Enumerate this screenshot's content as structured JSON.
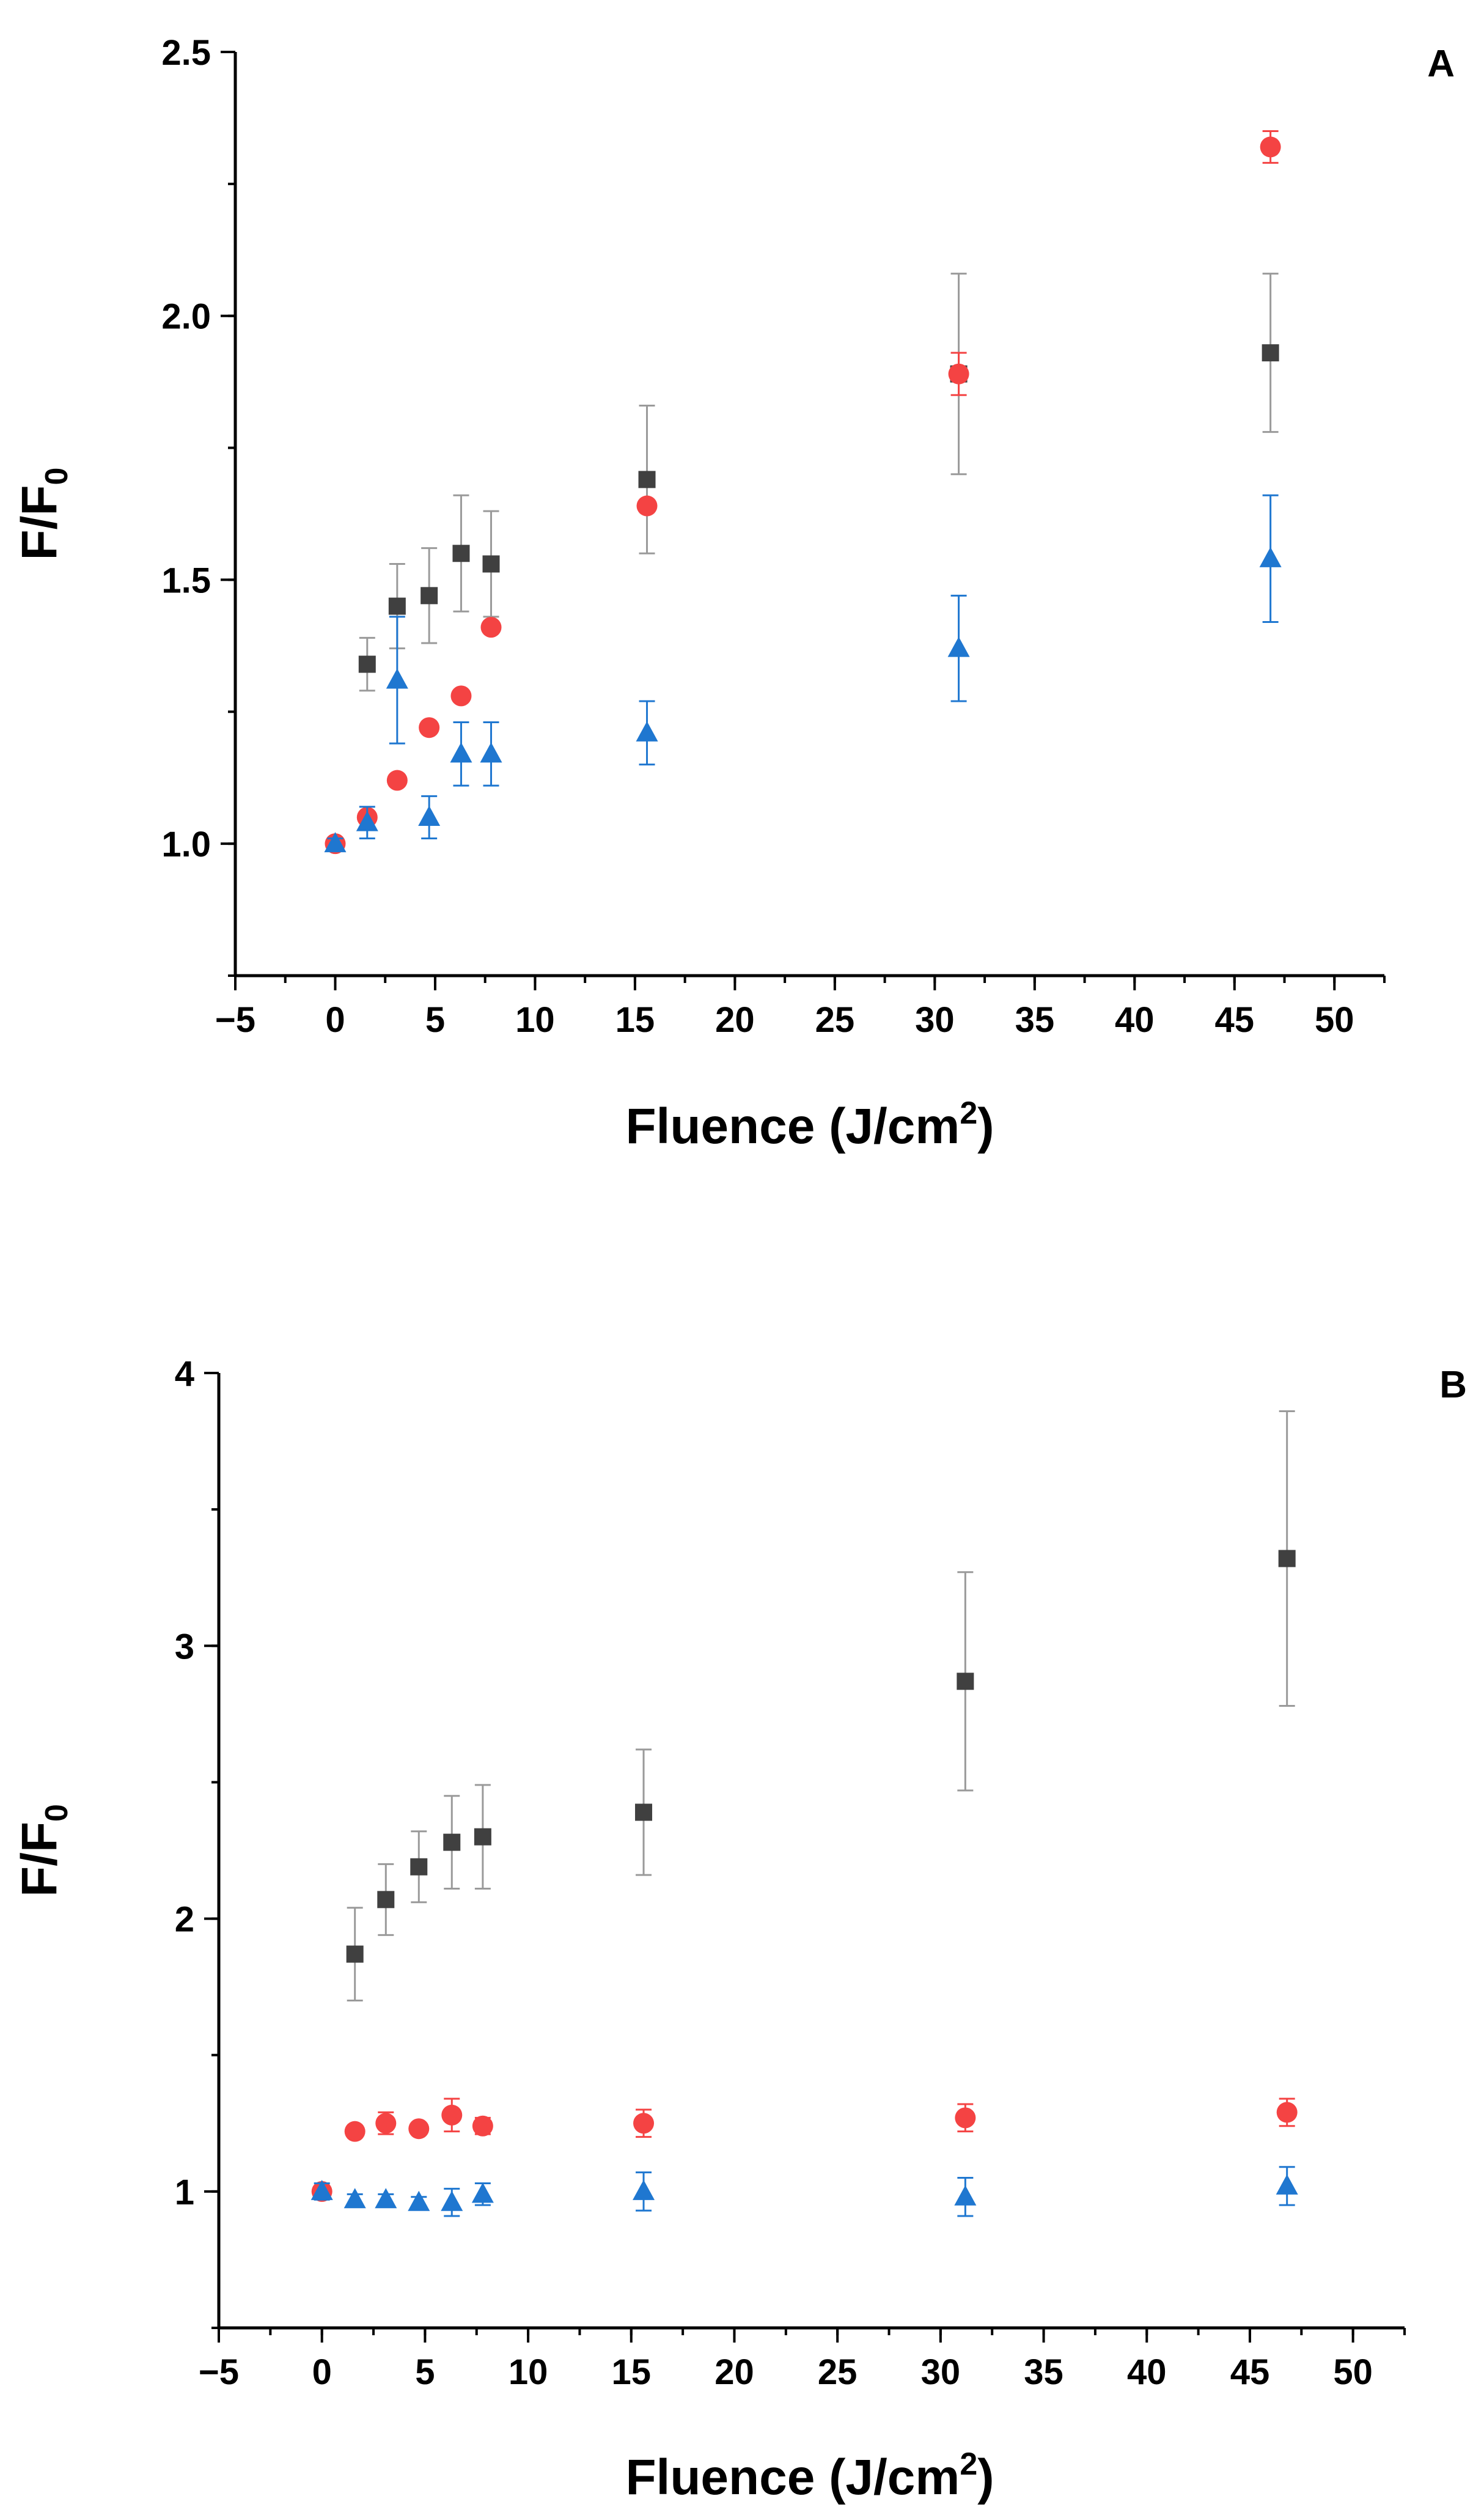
{
  "chart_data": [
    {
      "type": "scatter",
      "panel_label": "A",
      "xlabel": {
        "base": "Fluence (J/cm",
        "sup": "2",
        "tail": ")"
      },
      "ylabel": {
        "base": "F/F",
        "sub": "0"
      },
      "xlim": [
        -5,
        52.5
      ],
      "ylim": [
        0.75,
        2.5
      ],
      "xticks": [
        -5,
        0,
        5,
        10,
        15,
        20,
        25,
        30,
        35,
        40,
        45,
        50
      ],
      "xtick_labels": [
        "−5",
        "0",
        "5",
        "10",
        "15",
        "20",
        "25",
        "30",
        "35",
        "40",
        "45",
        "50"
      ],
      "yticks": [
        1.0,
        1.5,
        2.0,
        2.5
      ],
      "ytick_labels": [
        "1.0",
        "1.5",
        "2.0",
        "2.5"
      ],
      "x_minor_step": 2.5,
      "y_minor_step": 0.25,
      "grid": false,
      "series": [
        {
          "name": "squares",
          "marker": "square",
          "color": "#404040",
          "points": [
            {
              "x": 1.6,
              "y": 1.34,
              "err": 0.05
            },
            {
              "x": 3.1,
              "y": 1.45,
              "err": 0.08
            },
            {
              "x": 4.7,
              "y": 1.47,
              "err": 0.09
            },
            {
              "x": 6.3,
              "y": 1.55,
              "err": 0.11
            },
            {
              "x": 7.8,
              "y": 1.53,
              "err": 0.1
            },
            {
              "x": 15.6,
              "y": 1.69,
              "err": 0.14
            },
            {
              "x": 31.2,
              "y": 1.89,
              "err": 0.19
            },
            {
              "x": 46.8,
              "y": 1.93,
              "err": 0.15
            }
          ]
        },
        {
          "name": "circles",
          "marker": "circle",
          "color": "#f44343",
          "points": [
            {
              "x": 0,
              "y": 1.0,
              "err": 0.01
            },
            {
              "x": 1.6,
              "y": 1.05,
              "err": 0.01
            },
            {
              "x": 3.1,
              "y": 1.12,
              "err": 0.01
            },
            {
              "x": 4.7,
              "y": 1.22,
              "err": 0.01
            },
            {
              "x": 6.3,
              "y": 1.28,
              "err": 0.01
            },
            {
              "x": 7.8,
              "y": 1.41,
              "err": 0.01
            },
            {
              "x": 15.6,
              "y": 1.64,
              "err": 0.01
            },
            {
              "x": 31.2,
              "y": 1.89,
              "err": 0.04
            },
            {
              "x": 46.8,
              "y": 2.32,
              "err": 0.03
            }
          ]
        },
        {
          "name": "triangles",
          "marker": "triangle",
          "color": "#1f77d0",
          "points": [
            {
              "x": 0,
              "y": 1.0,
              "err": 0.01
            },
            {
              "x": 1.6,
              "y": 1.04,
              "err": 0.03
            },
            {
              "x": 3.1,
              "y": 1.31,
              "err": 0.12
            },
            {
              "x": 4.7,
              "y": 1.05,
              "err": 0.04
            },
            {
              "x": 6.3,
              "y": 1.17,
              "err": 0.06
            },
            {
              "x": 7.8,
              "y": 1.17,
              "err": 0.06
            },
            {
              "x": 15.6,
              "y": 1.21,
              "err": 0.06
            },
            {
              "x": 31.2,
              "y": 1.37,
              "err": 0.1
            },
            {
              "x": 46.8,
              "y": 1.54,
              "err": 0.12
            }
          ]
        }
      ]
    },
    {
      "type": "scatter",
      "panel_label": "B",
      "xlabel": {
        "base": "Fluence (J/cm",
        "sup": "2",
        "tail": ")"
      },
      "ylabel": {
        "base": "F/F",
        "sub": "0"
      },
      "xlim": [
        -5,
        52.5
      ],
      "ylim": [
        0.5,
        4
      ],
      "xticks": [
        -5,
        0,
        5,
        10,
        15,
        20,
        25,
        30,
        35,
        40,
        45,
        50
      ],
      "xtick_labels": [
        "−5",
        "0",
        "5",
        "10",
        "15",
        "20",
        "25",
        "30",
        "35",
        "40",
        "45",
        "50"
      ],
      "yticks": [
        1,
        2,
        3,
        4
      ],
      "ytick_labels": [
        "1",
        "2",
        "3",
        "4"
      ],
      "x_minor_step": 2.5,
      "y_minor_step": 0.5,
      "grid": false,
      "series": [
        {
          "name": "squares",
          "marker": "square",
          "color": "#404040",
          "points": [
            {
              "x": 1.6,
              "y": 1.87,
              "err": 0.17
            },
            {
              "x": 3.1,
              "y": 2.07,
              "err": 0.13
            },
            {
              "x": 4.7,
              "y": 2.19,
              "err": 0.13
            },
            {
              "x": 6.3,
              "y": 2.28,
              "err": 0.17
            },
            {
              "x": 7.8,
              "y": 2.3,
              "err": 0.19
            },
            {
              "x": 15.6,
              "y": 2.39,
              "err": 0.23
            },
            {
              "x": 31.2,
              "y": 2.87,
              "err": 0.4
            },
            {
              "x": 46.8,
              "y": 3.32,
              "err": 0.54
            }
          ]
        },
        {
          "name": "circles",
          "marker": "circle",
          "color": "#f44343",
          "points": [
            {
              "x": 0,
              "y": 1.0,
              "err": 0.01
            },
            {
              "x": 1.6,
              "y": 1.22,
              "err": 0.01
            },
            {
              "x": 3.1,
              "y": 1.25,
              "err": 0.04
            },
            {
              "x": 4.7,
              "y": 1.23,
              "err": 0.02
            },
            {
              "x": 6.3,
              "y": 1.28,
              "err": 0.06
            },
            {
              "x": 7.8,
              "y": 1.24,
              "err": 0.03
            },
            {
              "x": 15.6,
              "y": 1.25,
              "err": 0.05
            },
            {
              "x": 31.2,
              "y": 1.27,
              "err": 0.05
            },
            {
              "x": 46.8,
              "y": 1.29,
              "err": 0.05
            }
          ]
        },
        {
          "name": "triangles",
          "marker": "triangle",
          "color": "#1f77d0",
          "points": [
            {
              "x": 0,
              "y": 1.0,
              "err": 0.03
            },
            {
              "x": 1.6,
              "y": 0.97,
              "err": 0.02
            },
            {
              "x": 3.1,
              "y": 0.97,
              "err": 0.02
            },
            {
              "x": 4.7,
              "y": 0.96,
              "err": 0.02
            },
            {
              "x": 6.3,
              "y": 0.96,
              "err": 0.05
            },
            {
              "x": 7.8,
              "y": 0.99,
              "err": 0.04
            },
            {
              "x": 15.6,
              "y": 1.0,
              "err": 0.07
            },
            {
              "x": 31.2,
              "y": 0.98,
              "err": 0.07
            },
            {
              "x": 46.8,
              "y": 1.02,
              "err": 0.07
            }
          ]
        }
      ]
    }
  ]
}
